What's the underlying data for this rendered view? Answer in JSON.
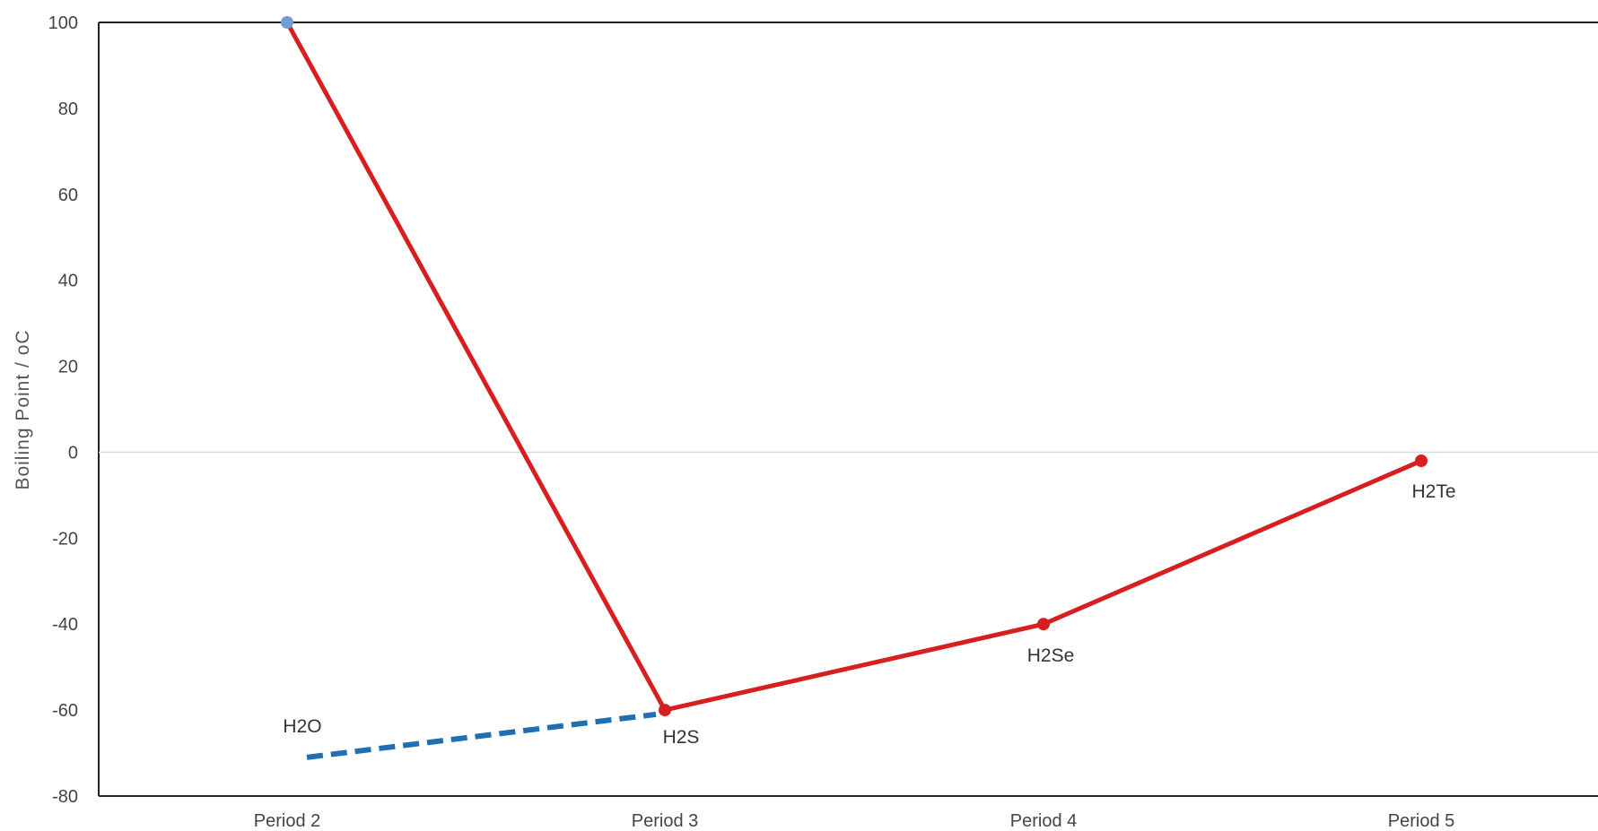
{
  "chart_data": {
    "type": "line",
    "title": "",
    "xlabel": "",
    "ylabel": "Boiling Point / oC",
    "ylim": [
      -80,
      100
    ],
    "y_ticks": [
      "100",
      "80",
      "60",
      "40",
      "20",
      "0",
      "-20",
      "-40",
      "-60",
      "-80"
    ],
    "categories": [
      "Period 2",
      "Period 3",
      "Period 4",
      "Period 5"
    ],
    "grid": "zero-line only",
    "legend": "none",
    "series": [
      {
        "style": "solid",
        "color": "#d81f1f",
        "marker_color": "#d81f1f",
        "first_marker_color": "#6f9fd6",
        "points": [
          {
            "x": "Period 2",
            "y": 100,
            "label": ""
          },
          {
            "x": "Period 3",
            "y": -60,
            "label": "H2S"
          },
          {
            "x": "Period 4",
            "y": -40,
            "label": "H2Se"
          },
          {
            "x": "Period 5",
            "y": -2,
            "label": "H2Te"
          }
        ]
      },
      {
        "style": "dashed",
        "color": "#1f6fb2",
        "points": [
          {
            "x": "Period 2",
            "y": -71,
            "label": "H2O"
          },
          {
            "x": "Period 3",
            "y": -61,
            "label": ""
          }
        ]
      }
    ]
  }
}
